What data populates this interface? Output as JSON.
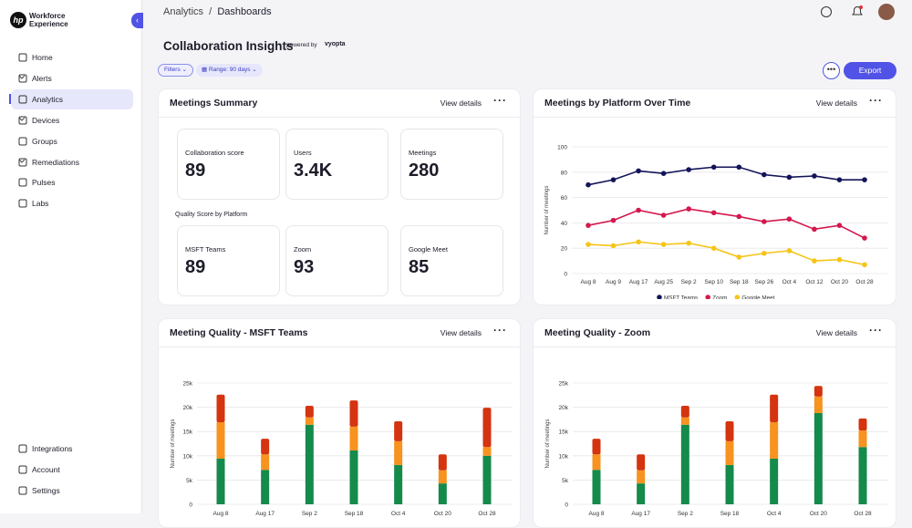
{
  "sidebar": {
    "logo_lines": [
      "Workforce",
      "Experience"
    ],
    "nav": [
      "Home",
      "Alerts",
      "Analytics",
      "Devices",
      "Groups",
      "Remediations",
      "Pulses",
      "Labs"
    ],
    "bottom_nav": [
      "Integrations",
      "Account",
      "Settings"
    ]
  },
  "header": {
    "breadcrumb": [
      "Analytics",
      "/",
      "Dashboards"
    ],
    "title": "Collaboration Insights",
    "powered_by": "powered by",
    "vendor": "vyopta"
  },
  "toolbar": {
    "filters": "Filters",
    "range": "Range: 90 days",
    "export": "Export"
  },
  "summary": {
    "title": "Meetings Summary",
    "action": "View details",
    "stats": [
      {
        "label": "Collaboration score",
        "value": "89"
      },
      {
        "label": "Users",
        "value": "3.4K"
      },
      {
        "label": "Meetings",
        "value": "280"
      }
    ],
    "quality_title": "Quality Score by Platform",
    "quality": [
      {
        "label": "MSFT Teams",
        "value": "89"
      },
      {
        "label": "Zoom",
        "value": "93"
      },
      {
        "label": "Google Meet",
        "value": "85"
      }
    ]
  },
  "platform_panel": {
    "title": "Meetings by Platform Over Time",
    "action": "View details",
    "chart_data": {
      "type": "line",
      "y_label": "Number of meetings",
      "categories": [
        "Aug 8",
        "Aug 9",
        "Aug 17",
        "Aug 25",
        "Sep 2",
        "Sep 10",
        "Sep 18",
        "Sep 26",
        "Oct 4",
        "Oct 12",
        "Oct 20",
        "Oct 28"
      ],
      "ylim": [
        0,
        100
      ],
      "yticks": [
        0,
        20,
        40,
        60,
        80,
        100
      ],
      "grid": true,
      "series": [
        {
          "name": "MSFT Teams",
          "color": "#14145a",
          "values": [
            70,
            74,
            81,
            79,
            82,
            84,
            84,
            78,
            76,
            77,
            74,
            74
          ]
        },
        {
          "name": "Zoom",
          "color": "#d4184d",
          "values": [
            38,
            42,
            50,
            46,
            51,
            48,
            45,
            41,
            43,
            35,
            38,
            28
          ]
        },
        {
          "name": "Google Meet",
          "color": "#f5c518",
          "values": [
            23,
            22,
            25,
            23,
            24,
            20,
            13,
            16,
            18,
            10,
            11,
            7
          ]
        }
      ]
    }
  },
  "teams_panel": {
    "title": "Meeting Quality - MSFT Teams",
    "action": "View details",
    "chart_data": {
      "type": "stacked_bar",
      "y_label": "Number of meetings",
      "categories": [
        "Aug 8",
        "Aug 17",
        "Sep 2",
        "Sep 18",
        "Oct 4",
        "Oct 20",
        "Oct 28"
      ],
      "ylim": [
        0,
        25000
      ],
      "yticks": [
        0,
        {
          "value": 5000,
          "label": "5k"
        },
        {
          "value": 10000,
          "label": "10k"
        },
        {
          "value": 15000,
          "label": "15k"
        },
        {
          "value": 20000,
          "label": "20k"
        },
        {
          "value": 25000,
          "label": "25k"
        }
      ],
      "grid": true,
      "series": [
        {
          "color": "#148a4b",
          "values": [
            9400,
            7100,
            16400,
            11100,
            8100,
            4300,
            10000
          ]
        },
        {
          "color": "#f7931e",
          "values": [
            7500,
            3200,
            1500,
            4900,
            4900,
            2700,
            1800
          ]
        },
        {
          "color": "#d4340f",
          "values": [
            5700,
            3200,
            2400,
            5400,
            4100,
            3300,
            8100
          ]
        }
      ]
    }
  },
  "zoom_panel": {
    "title": "Meeting Quality - Zoom",
    "action": "View details",
    "chart_data": {
      "type": "stacked_bar",
      "y_label": "Number of meetings",
      "categories": [
        "Aug 8",
        "Aug 17",
        "Sep 2",
        "Sep 18",
        "Oct 4",
        "Oct 20",
        "Oct 28"
      ],
      "ylim": [
        0,
        25000
      ],
      "yticks": [
        0,
        {
          "value": 5000,
          "label": "5k"
        },
        {
          "value": 10000,
          "label": "10k"
        },
        {
          "value": 15000,
          "label": "15k"
        },
        {
          "value": 20000,
          "label": "20k"
        },
        {
          "value": 25000,
          "label": "25k"
        }
      ],
      "grid": true,
      "series": [
        {
          "color": "#148a4b",
          "values": [
            7100,
            4300,
            16400,
            8100,
            9400,
            18800,
            11800
          ]
        },
        {
          "color": "#f7931e",
          "values": [
            3200,
            2700,
            1500,
            4900,
            7500,
            3400,
            3400
          ]
        },
        {
          "color": "#d4340f",
          "values": [
            3200,
            3300,
            2400,
            4100,
            5700,
            2200,
            2500
          ]
        }
      ]
    }
  }
}
